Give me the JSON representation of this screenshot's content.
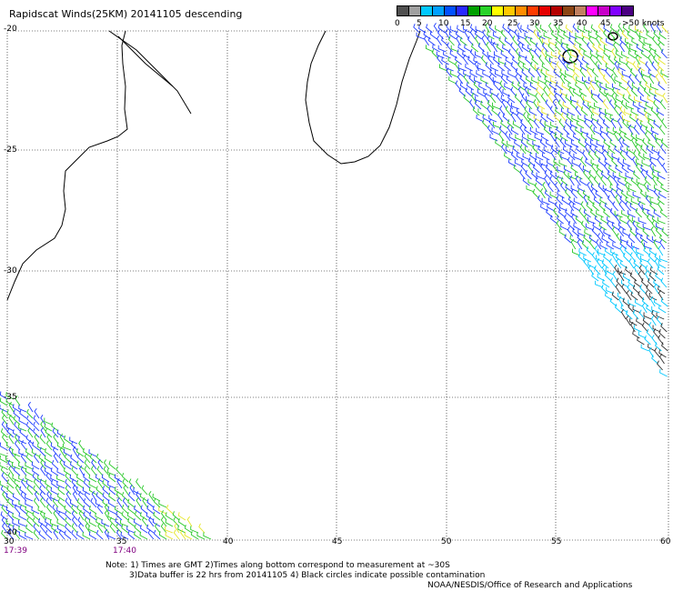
{
  "header": {
    "title": "Rapidscat Winds(25KM) 20141105 descending"
  },
  "legend": {
    "colors": [
      "#505050",
      "#a0a0a0",
      "#00c8ff",
      "#00a0ff",
      "#0050ff",
      "#2828ff",
      "#00a000",
      "#28d228",
      "#ffff00",
      "#ffc800",
      "#ff8c00",
      "#ff3c00",
      "#e60000",
      "#b40000",
      "#8b4513",
      "#c08060",
      "#ff00ff",
      "#c800c8",
      "#8000ff",
      "#4b0082"
    ],
    "labels": [
      "0",
      "5",
      "10",
      "15",
      "20",
      "25",
      "30",
      "35",
      "40",
      "45",
      ">50 knots"
    ]
  },
  "axes": {
    "lat_labels": [
      "-20",
      "-25",
      "-30",
      "-35",
      "-40"
    ],
    "lon_labels": [
      "30",
      "35",
      "40",
      "45",
      "50",
      "55",
      "60"
    ]
  },
  "times": {
    "left": "17:39",
    "right": "17:40"
  },
  "notes": {
    "line1": "Note: 1) Times are GMT 2)Times along bottom correspond to measurement at ~30S",
    "line2": "3)Data buffer is 22 hrs from 20141105 4) Black circles indicate possible contamination",
    "line3": "NOAA/NESDIS/Office of Research and Applications"
  },
  "colors": {
    "grid": "#000000",
    "coast": "#000000",
    "swath_blue": "#1e3cff",
    "swath_green": "#28c828",
    "swath_yellow": "#e6e628",
    "swath_cyan": "#00c8ff",
    "swath_black": "#303030"
  }
}
